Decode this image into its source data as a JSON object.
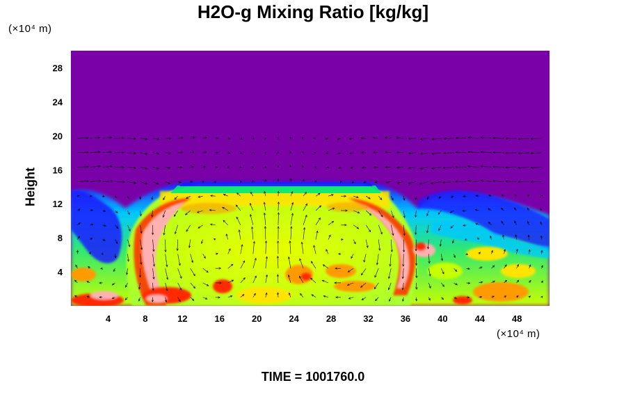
{
  "chart_data": {
    "type": "heatmap",
    "title": "H2O-g Mixing Ratio [kg/kg]",
    "ylabel": "Height",
    "x_unit_label": "(×10⁴ m)",
    "y_unit_label": "(×10⁴ m)",
    "footer": "TIME = 1001760.0",
    "xlim": [
      0,
      51.5
    ],
    "ylim": [
      0,
      30
    ],
    "x_ticks": [
      "4",
      "8",
      "12",
      "16",
      "20",
      "24",
      "28",
      "32",
      "36",
      "40",
      "44",
      "48"
    ],
    "y_ticks": [
      "4",
      "8",
      "12",
      "16",
      "20",
      "24",
      "28"
    ],
    "overlay": "wind vector arrows",
    "colormap": [
      "#7a00a8",
      "#1a1aff",
      "#00c8ff",
      "#00e87a",
      "#b8ff00",
      "#ffff00",
      "#ff9a00",
      "#ff2a00",
      "#ffb0b0"
    ],
    "background_color": "#7a00a8",
    "grid": false
  }
}
